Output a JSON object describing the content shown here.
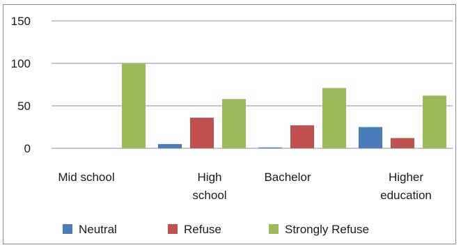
{
  "chart_data": {
    "type": "bar",
    "categories": [
      "Mid school",
      "High school",
      "Bachelor",
      "Higher education"
    ],
    "category_lines": [
      [
        "Mid school"
      ],
      [
        "High",
        "school"
      ],
      [
        "Bachelor"
      ],
      [
        "Higher",
        "education"
      ]
    ],
    "series": [
      {
        "name": "Neutral",
        "values": [
          0,
          5,
          1,
          25
        ],
        "color": "#4a7ebb"
      },
      {
        "name": "Refuse",
        "values": [
          0,
          36,
          27,
          12
        ],
        "color": "#c0504d"
      },
      {
        "name": "Strongly Refuse",
        "values": [
          100,
          58,
          71,
          62
        ],
        "color": "#9bbb59"
      }
    ],
    "y_ticks": [
      0,
      50,
      100,
      150
    ],
    "ylim": [
      0,
      150
    ],
    "title": "",
    "xlabel": "",
    "ylabel": "",
    "grid": true,
    "legend_position": "bottom"
  }
}
